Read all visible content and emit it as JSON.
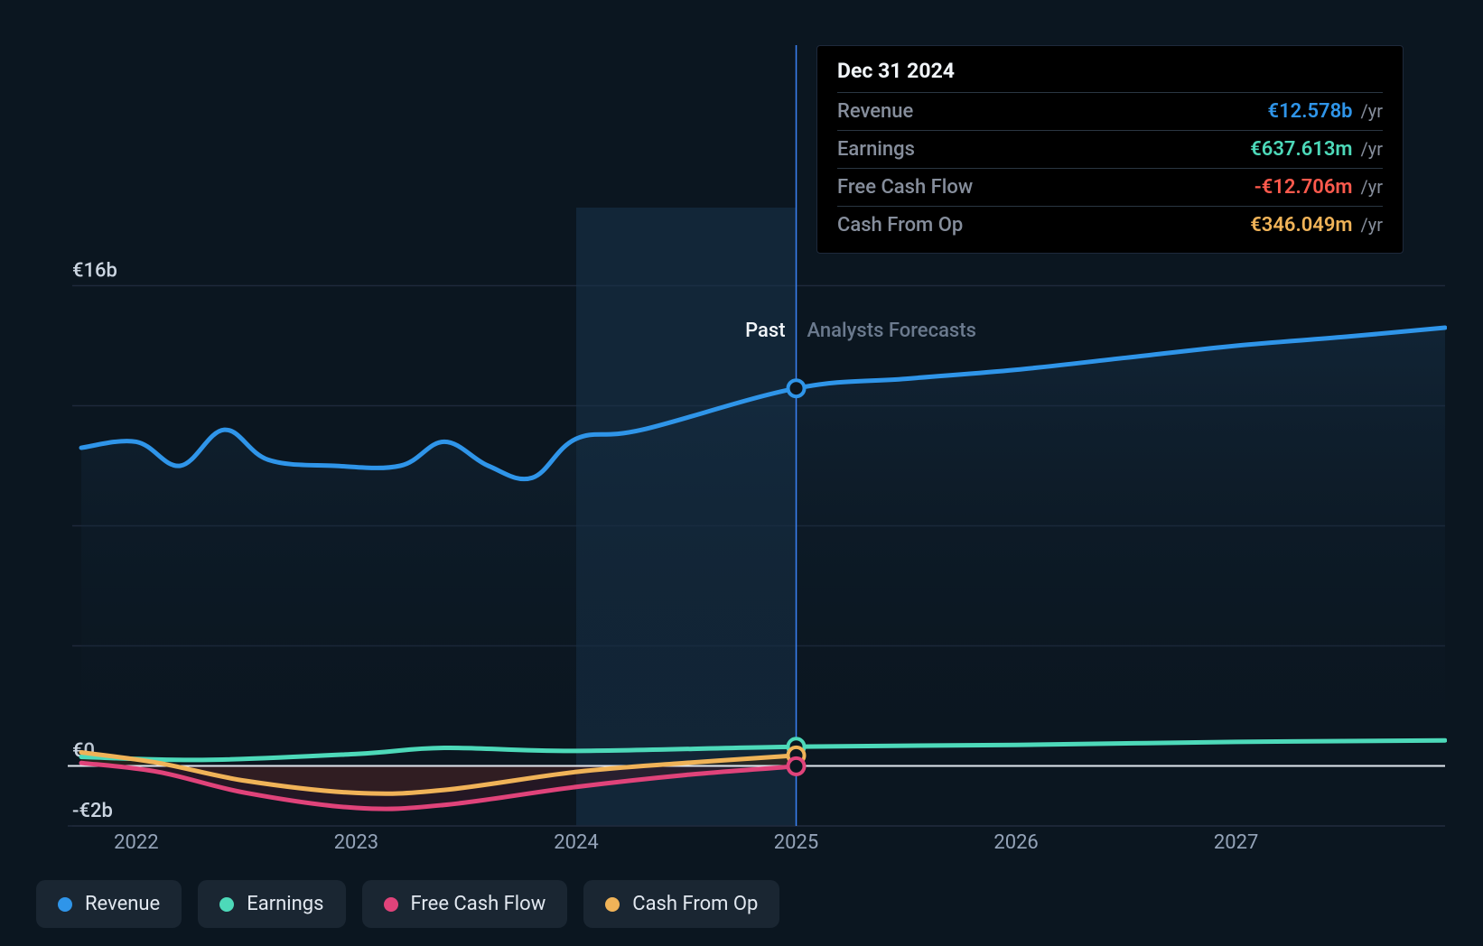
{
  "chart": {
    "type": "line",
    "background_color": "#0b1620",
    "grid_color": "#1e293b",
    "zero_line_color": "#e2e8f0",
    "crosshair_color": "#3b82f6",
    "past_label": "Past",
    "past_label_color": "#f1f5f9",
    "forecast_label": "Analysts Forecasts",
    "forecast_label_color": "#6b7a8e",
    "label_fontsize": 22,
    "line_width": 5,
    "marker_radius": 9,
    "y_axis": {
      "min": -2,
      "max": 18,
      "ticks": [
        {
          "value": 16,
          "label": "€16b"
        },
        {
          "value": 0,
          "label": "€0"
        },
        {
          "value": -2,
          "label": "-€2b"
        }
      ],
      "extra_gridlines": [
        4,
        8,
        12
      ]
    },
    "x_axis": {
      "min": 2021.75,
      "max": 2027.95,
      "ticks": [
        {
          "value": 2022,
          "label": "2022"
        },
        {
          "value": 2023,
          "label": "2023"
        },
        {
          "value": 2024,
          "label": "2024"
        },
        {
          "value": 2025,
          "label": "2025"
        },
        {
          "value": 2026,
          "label": "2026"
        },
        {
          "value": 2027,
          "label": "2027"
        }
      ]
    },
    "crosshair_x": 2025,
    "shaded_region": {
      "start": 2024,
      "end": 2025,
      "color": "#17324a",
      "opacity": 0.6
    },
    "series": [
      {
        "id": "revenue",
        "label": "Revenue",
        "color": "#2f95e9",
        "area_fill": true,
        "area_gradient_top": "#17324a",
        "area_gradient_bottom": "#0b1620",
        "marker_at_crosshair": true,
        "data": [
          {
            "x": 2021.75,
            "y": 10.6
          },
          {
            "x": 2022.0,
            "y": 10.8
          },
          {
            "x": 2022.2,
            "y": 10.0
          },
          {
            "x": 2022.4,
            "y": 11.2
          },
          {
            "x": 2022.6,
            "y": 10.2
          },
          {
            "x": 2022.9,
            "y": 10.0
          },
          {
            "x": 2023.2,
            "y": 10.0
          },
          {
            "x": 2023.4,
            "y": 10.8
          },
          {
            "x": 2023.6,
            "y": 10.0
          },
          {
            "x": 2023.8,
            "y": 9.6
          },
          {
            "x": 2024.0,
            "y": 10.9
          },
          {
            "x": 2024.3,
            "y": 11.2
          },
          {
            "x": 2025.0,
            "y": 12.58
          },
          {
            "x": 2025.5,
            "y": 12.9
          },
          {
            "x": 2026.0,
            "y": 13.2
          },
          {
            "x": 2026.5,
            "y": 13.6
          },
          {
            "x": 2027.0,
            "y": 14.0
          },
          {
            "x": 2027.5,
            "y": 14.3
          },
          {
            "x": 2027.95,
            "y": 14.6
          }
        ]
      },
      {
        "id": "earnings",
        "label": "Earnings",
        "color": "#4dd9b9",
        "area_fill": false,
        "marker_at_crosshair": true,
        "data": [
          {
            "x": 2021.75,
            "y": 0.3
          },
          {
            "x": 2022.3,
            "y": 0.2
          },
          {
            "x": 2023.0,
            "y": 0.4
          },
          {
            "x": 2023.4,
            "y": 0.6
          },
          {
            "x": 2024.0,
            "y": 0.5
          },
          {
            "x": 2025.0,
            "y": 0.64
          },
          {
            "x": 2026.0,
            "y": 0.7
          },
          {
            "x": 2027.0,
            "y": 0.8
          },
          {
            "x": 2027.95,
            "y": 0.85
          }
        ]
      },
      {
        "id": "cash_from_op",
        "label": "Cash From Op",
        "color": "#f0b358",
        "area_fill": true,
        "area_color": "#3a2d1a",
        "marker_at_crosshair": true,
        "data": [
          {
            "x": 2021.75,
            "y": 0.45
          },
          {
            "x": 2022.1,
            "y": 0.1
          },
          {
            "x": 2022.5,
            "y": -0.5
          },
          {
            "x": 2023.0,
            "y": -0.9
          },
          {
            "x": 2023.4,
            "y": -0.8
          },
          {
            "x": 2024.0,
            "y": -0.2
          },
          {
            "x": 2024.5,
            "y": 0.1
          },
          {
            "x": 2025.0,
            "y": 0.35
          }
        ]
      },
      {
        "id": "free_cash_flow",
        "label": "Free Cash Flow",
        "color": "#e0437a",
        "area_fill": true,
        "area_color": "#3a1a28",
        "marker_at_crosshair": true,
        "data": [
          {
            "x": 2021.75,
            "y": 0.1
          },
          {
            "x": 2022.1,
            "y": -0.2
          },
          {
            "x": 2022.5,
            "y": -0.9
          },
          {
            "x": 2023.0,
            "y": -1.4
          },
          {
            "x": 2023.4,
            "y": -1.3
          },
          {
            "x": 2024.0,
            "y": -0.7
          },
          {
            "x": 2024.5,
            "y": -0.3
          },
          {
            "x": 2025.0,
            "y": -0.013
          }
        ]
      }
    ]
  },
  "tooltip": {
    "date": "Dec 31 2024",
    "unit": "/yr",
    "rows": [
      {
        "label": "Revenue",
        "value": "€12.578b",
        "color": "#2f95e9"
      },
      {
        "label": "Earnings",
        "value": "€637.613m",
        "color": "#4dd9b9"
      },
      {
        "label": "Free Cash Flow",
        "value": "-€12.706m",
        "color": "#ff5a4d"
      },
      {
        "label": "Cash From Op",
        "value": "€346.049m",
        "color": "#f0b358"
      }
    ]
  },
  "legend": {
    "item_bg": "#1a2632",
    "text_color": "#e2e8f0",
    "items": [
      {
        "id": "revenue",
        "label": "Revenue",
        "color": "#2f95e9"
      },
      {
        "id": "earnings",
        "label": "Earnings",
        "color": "#4dd9b9"
      },
      {
        "id": "free_cash_flow",
        "label": "Free Cash Flow",
        "color": "#e0437a"
      },
      {
        "id": "cash_from_op",
        "label": "Cash From Op",
        "color": "#f0b358"
      }
    ]
  }
}
